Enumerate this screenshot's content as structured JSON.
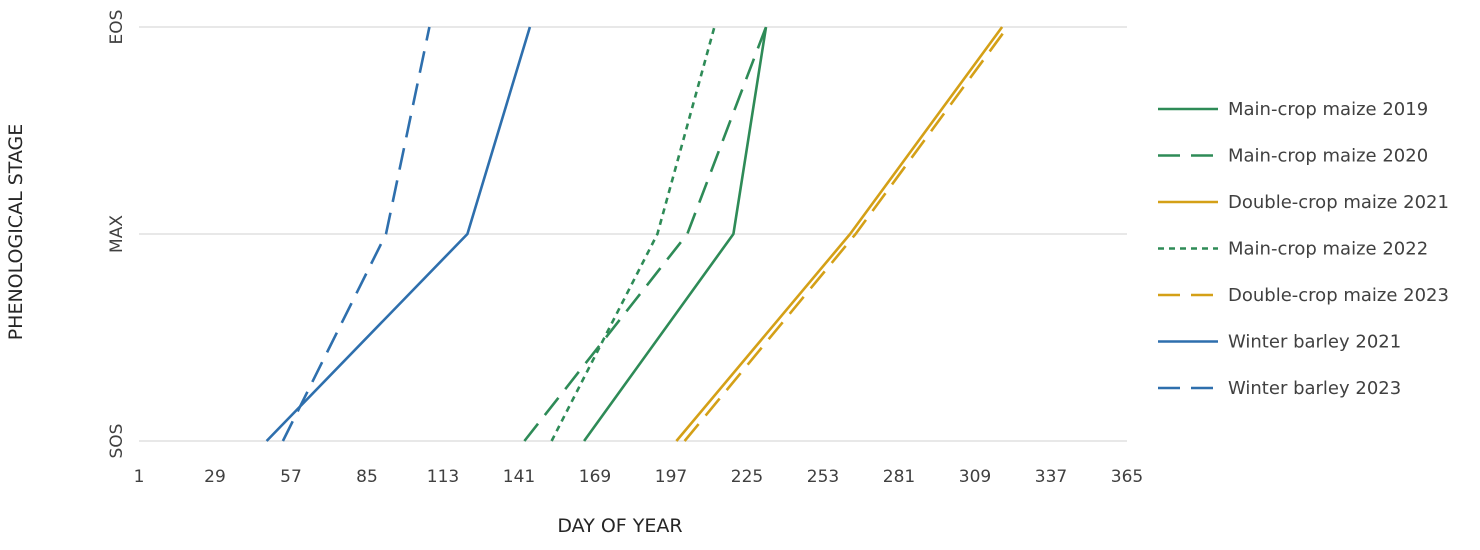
{
  "chart_data": {
    "type": "line",
    "title": "",
    "xlabel": "DAY OF YEAR",
    "ylabel": "PHENOLOGICAL STAGE",
    "xlim": [
      1,
      365
    ],
    "x_ticks": [
      1,
      29,
      57,
      85,
      113,
      141,
      169,
      197,
      225,
      253,
      281,
      309,
      337,
      365
    ],
    "y_categories": [
      "SOS",
      "MAX",
      "EOS"
    ],
    "grid": "horizontal",
    "legend_position": "right",
    "series": [
      {
        "name": "Main-crop maize 2019",
        "color": "#2e8b57",
        "dash": "solid",
        "x": [
          165,
          220,
          232
        ],
        "y": [
          "SOS",
          "MAX",
          "EOS"
        ]
      },
      {
        "name": "Main-crop maize 2020",
        "color": "#2e8b57",
        "dash": "long-dash",
        "x": [
          143,
          203,
          232
        ],
        "y": [
          "SOS",
          "MAX",
          "EOS"
        ]
      },
      {
        "name": "Double-crop maize 2021",
        "color": "#d4a017",
        "dash": "solid",
        "x": [
          199,
          263,
          319
        ],
        "y": [
          "SOS",
          "MAX",
          "EOS"
        ]
      },
      {
        "name": "Main-crop maize 2022",
        "color": "#2e8b57",
        "dash": "short-dash",
        "x": [
          153,
          192,
          213
        ],
        "y": [
          "SOS",
          "MAX",
          "EOS"
        ]
      },
      {
        "name": "Double-crop maize 2023",
        "color": "#d4a017",
        "dash": "long-dash",
        "x": [
          202,
          265,
          321
        ],
        "y": [
          "SOS",
          "MAX",
          "EOS"
        ]
      },
      {
        "name": "Winter barley 2021",
        "color": "#2e6fad",
        "dash": "solid",
        "x": [
          48,
          122,
          145
        ],
        "y": [
          "SOS",
          "MAX",
          "EOS"
        ]
      },
      {
        "name": "Winter barley 2023",
        "color": "#2e6fad",
        "dash": "long-dash",
        "x": [
          54,
          92,
          108
        ],
        "y": [
          "SOS",
          "MAX",
          "EOS"
        ]
      }
    ]
  }
}
